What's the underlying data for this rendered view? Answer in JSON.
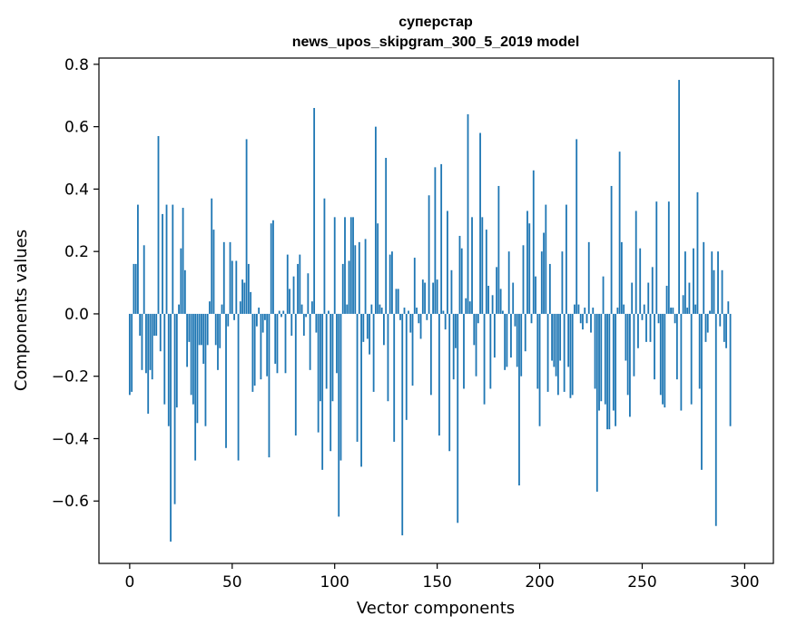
{
  "chart_data": {
    "type": "bar",
    "title_lines": [
      "суперстар",
      "news_upos_skipgram_300_5_2019 model"
    ],
    "xlabel": "Vector components",
    "ylabel": "Components values",
    "xlim": [
      -15,
      314
    ],
    "ylim": [
      -0.8,
      0.82
    ],
    "xticks": [
      0,
      50,
      100,
      150,
      200,
      250,
      300
    ],
    "xtick_labels": [
      "0",
      "50",
      "100",
      "150",
      "200",
      "250",
      "300"
    ],
    "yticks": [
      -0.6,
      -0.4,
      -0.2,
      0.0,
      0.2,
      0.4,
      0.6,
      0.8
    ],
    "ytick_labels": [
      "−0.6",
      "−0.4",
      "−0.2",
      "0.0",
      "0.2",
      "0.4",
      "0.6",
      "0.8"
    ],
    "bar_color": "#1f77b4",
    "values": [
      -0.26,
      -0.25,
      0.16,
      0.16,
      0.35,
      -0.07,
      -0.18,
      0.22,
      -0.19,
      -0.32,
      -0.18,
      -0.21,
      -0.07,
      -0.07,
      0.57,
      -0.12,
      0.32,
      -0.29,
      0.35,
      -0.36,
      -0.73,
      0.35,
      -0.61,
      -0.3,
      0.03,
      0.21,
      0.34,
      0.14,
      -0.17,
      -0.09,
      -0.26,
      -0.29,
      -0.47,
      -0.35,
      -0.1,
      -0.1,
      -0.16,
      -0.36,
      -0.1,
      0.04,
      0.37,
      0.27,
      -0.1,
      -0.18,
      -0.11,
      0.03,
      0.23,
      -0.43,
      -0.04,
      0.23,
      0.17,
      -0.02,
      0.17,
      -0.47,
      0.04,
      0.11,
      0.1,
      0.56,
      0.16,
      0.07,
      -0.25,
      -0.23,
      -0.04,
      0.02,
      -0.21,
      -0.06,
      -0.02,
      -0.2,
      -0.46,
      0.29,
      0.3,
      -0.16,
      -0.19,
      0.01,
      -0.01,
      0.01,
      -0.19,
      0.19,
      0.08,
      -0.07,
      0.12,
      -0.39,
      0.16,
      0.19,
      0.03,
      -0.07,
      -0.01,
      0.13,
      -0.18,
      0.04,
      0.66,
      -0.06,
      -0.38,
      -0.28,
      -0.5,
      0.37,
      -0.24,
      0.01,
      -0.44,
      -0.28,
      0.31,
      -0.19,
      -0.65,
      -0.47,
      0.16,
      0.31,
      0.03,
      0.17,
      0.31,
      0.31,
      0.22,
      -0.41,
      0.23,
      -0.49,
      -0.09,
      0.24,
      -0.08,
      -0.13,
      0.03,
      -0.25,
      0.6,
      0.29,
      0.03,
      0.02,
      -0.1,
      0.5,
      -0.28,
      0.19,
      0.2,
      -0.41,
      0.08,
      0.08,
      -0.02,
      -0.71,
      0.02,
      -0.34,
      0.01,
      -0.06,
      -0.23,
      0.18,
      0.02,
      -0.03,
      -0.08,
      0.11,
      0.1,
      -0.02,
      0.38,
      -0.26,
      0.1,
      0.47,
      0.11,
      -0.39,
      0.48,
      0.01,
      -0.05,
      0.33,
      -0.44,
      0.14,
      -0.21,
      -0.11,
      -0.67,
      0.25,
      0.21,
      -0.24,
      0.05,
      0.64,
      0.04,
      0.31,
      -0.1,
      -0.2,
      -0.03,
      0.58,
      0.31,
      -0.29,
      0.27,
      0.09,
      -0.24,
      0.06,
      -0.14,
      0.15,
      0.41,
      0.08,
      0.01,
      -0.18,
      -0.17,
      0.2,
      -0.14,
      0.1,
      -0.04,
      -0.17,
      -0.55,
      -0.2,
      0.22,
      -0.12,
      0.33,
      0.29,
      -0.03,
      0.46,
      0.12,
      -0.24,
      -0.36,
      0.2,
      0.26,
      0.35,
      -0.25,
      0.16,
      -0.15,
      -0.17,
      -0.2,
      -0.26,
      -0.15,
      0.2,
      -0.25,
      0.35,
      -0.17,
      -0.27,
      -0.26,
      0.03,
      0.56,
      0.03,
      -0.03,
      -0.05,
      0.02,
      -0.03,
      0.23,
      -0.06,
      0.02,
      -0.24,
      -0.57,
      -0.31,
      -0.28,
      0.12,
      -0.29,
      -0.37,
      -0.37,
      0.41,
      -0.31,
      -0.36,
      0.02,
      0.52,
      0.23,
      0.03,
      -0.15,
      -0.26,
      -0.33,
      0.1,
      -0.2,
      0.33,
      -0.11,
      0.21,
      -0.02,
      0.03,
      -0.09,
      0.1,
      -0.09,
      0.15,
      -0.21,
      0.36,
      -0.03,
      -0.26,
      -0.29,
      -0.3,
      0.09,
      0.36,
      0.02,
      0.02,
      -0.03,
      -0.21,
      0.75,
      -0.31,
      0.06,
      0.2,
      0.02,
      0.1,
      -0.29,
      0.21,
      0.03,
      0.39,
      -0.24,
      -0.5,
      0.23,
      -0.09,
      -0.06,
      0.01,
      0.2,
      0.14,
      -0.68,
      0.2,
      -0.04,
      0.14,
      -0.09,
      -0.11,
      0.04,
      -0.36
    ]
  }
}
